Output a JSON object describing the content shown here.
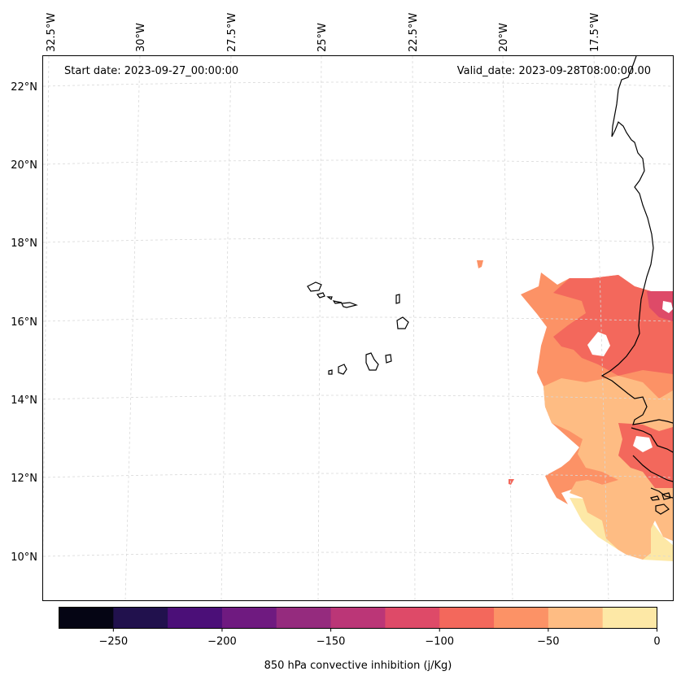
{
  "map": {
    "start_label": "Start date: 2023-09-27_00:00:00",
    "valid_label": "Valid_date: 2023-09-28T08:00:00.00",
    "lon_labels": [
      "32.5°W",
      "30°W",
      "27.5°W",
      "25°W",
      "22.5°W",
      "20°W",
      "17.5°W"
    ],
    "lat_labels": [
      "22°N",
      "20°N",
      "18°N",
      "16°N",
      "14°N",
      "12°N",
      "10°N"
    ],
    "colors": {
      "coast": "#000000",
      "grid": "#d8d8d8"
    }
  },
  "colorbar": {
    "label": "850 hPa convective inhibition (j/Kg)",
    "ticks": [
      "−250",
      "−200",
      "−150",
      "−100",
      "−50",
      "0"
    ],
    "tick_values": [
      -250,
      -200,
      -150,
      -100,
      -50,
      0
    ],
    "range": [
      -275,
      0
    ],
    "levels": [
      {
        "from": -275,
        "to": -250,
        "color": "#050514"
      },
      {
        "from": -250,
        "to": -225,
        "color": "#21114d"
      },
      {
        "from": -225,
        "to": -200,
        "color": "#4b0f78"
      },
      {
        "from": -200,
        "to": -175,
        "color": "#6f1a80"
      },
      {
        "from": -175,
        "to": -150,
        "color": "#952b7e"
      },
      {
        "from": -150,
        "to": -125,
        "color": "#bb3677"
      },
      {
        "from": -125,
        "to": -100,
        "color": "#de4a68"
      },
      {
        "from": -100,
        "to": -75,
        "color": "#f3685c"
      },
      {
        "from": -75,
        "to": -50,
        "color": "#fc9266"
      },
      {
        "from": -50,
        "to": -25,
        "color": "#febc83"
      },
      {
        "from": -25,
        "to": 0,
        "color": "#fde8a6"
      }
    ]
  }
}
